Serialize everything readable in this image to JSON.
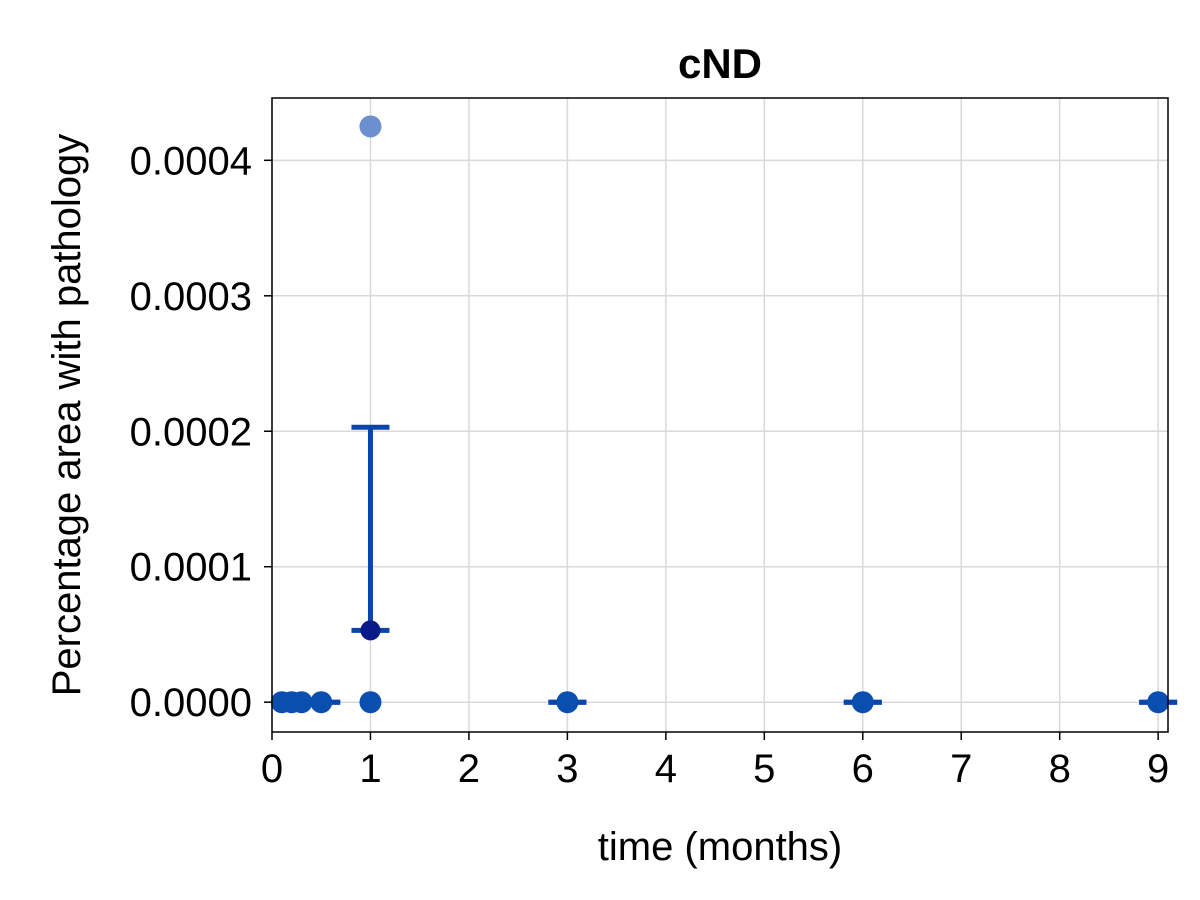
{
  "chart_data": {
    "type": "scatter",
    "title": "cND",
    "xlabel": "time (months)",
    "ylabel": "Percentage area with pathology",
    "xlim": [
      0,
      9.1
    ],
    "ylim": [
      -2.2e-05,
      0.000446
    ],
    "xticks": [
      0,
      1,
      2,
      3,
      4,
      5,
      6,
      7,
      8,
      9
    ],
    "xtick_labels": [
      "0",
      "1",
      "2",
      "3",
      "4",
      "5",
      "6",
      "7",
      "8",
      "9"
    ],
    "yticks": [
      0,
      0.0001,
      0.0002,
      0.0003,
      0.0004
    ],
    "ytick_labels": [
      "0.0000",
      "0.0001",
      "0.0002",
      "0.0003",
      "0.0004"
    ],
    "grid": true,
    "colors": {
      "points": "#0a4eb0",
      "points_light": "#6b8fcf",
      "mean": "#0b1a8a",
      "errorbar": "#0a46a8"
    },
    "points": [
      {
        "x": 0.1,
        "y": 0
      },
      {
        "x": 0.2,
        "y": 0
      },
      {
        "x": 0.3,
        "y": 0
      },
      {
        "x": 0.5,
        "y": 0
      },
      {
        "x": 1,
        "y": 0
      },
      {
        "x": 1,
        "y": 0.000425,
        "light": true
      },
      {
        "x": 3,
        "y": 0
      },
      {
        "x": 6,
        "y": 0
      },
      {
        "x": 9,
        "y": 0
      }
    ],
    "means": [
      {
        "x": 1,
        "y": 5.3e-05
      }
    ],
    "errorbars": [
      {
        "x": 0.5,
        "low": 0,
        "high": 0
      },
      {
        "x": 1,
        "low": 5.3e-05,
        "high": 0.000203
      },
      {
        "x": 3,
        "low": 0,
        "high": 0
      },
      {
        "x": 6,
        "low": 0,
        "high": 0
      },
      {
        "x": 9,
        "low": 0,
        "high": 0
      }
    ]
  }
}
